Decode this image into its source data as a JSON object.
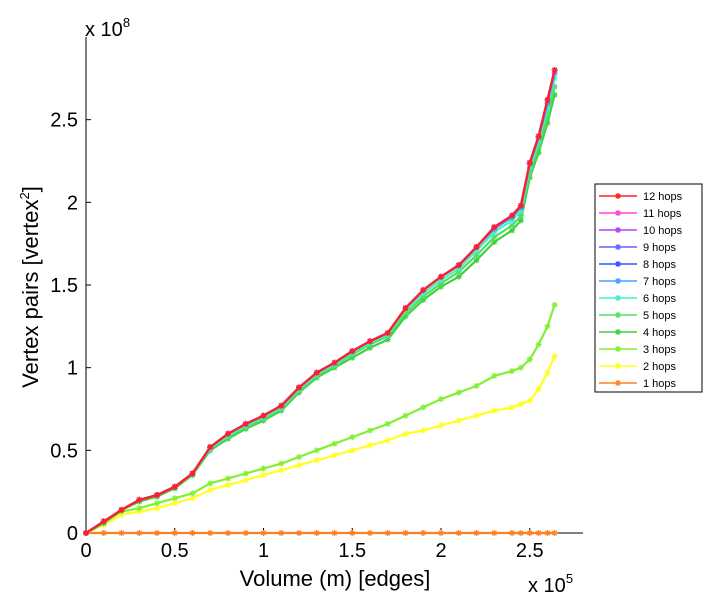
{
  "chart_data": {
    "type": "line",
    "title": "",
    "xlabel": "Volume (m) [edges]",
    "ylabel_main": "Vertex pairs [vertex",
    "ylabel_sup": "2",
    "ylabel_end": "]",
    "x_multiplier": "x 10",
    "x_multiplier_exp": "5",
    "y_multiplier": "x 10",
    "y_multiplier_exp": "8",
    "xlim": [
      0,
      2.8
    ],
    "ylim": [
      0,
      3.0
    ],
    "xticks": [
      0,
      0.5,
      1,
      1.5,
      2,
      2.5
    ],
    "xtick_labels": [
      "0",
      "0.5",
      "1",
      "1.5",
      "2",
      "2.5"
    ],
    "yticks": [
      0,
      0.5,
      1,
      1.5,
      2,
      2.5
    ],
    "ytick_labels": [
      "0",
      "0.5",
      "1",
      "1.5",
      "2",
      "2.5"
    ],
    "legend_position": "right",
    "grid": false,
    "x": [
      0,
      0.1,
      0.2,
      0.3,
      0.4,
      0.5,
      0.6,
      0.7,
      0.8,
      0.9,
      1.0,
      1.1,
      1.2,
      1.3,
      1.4,
      1.5,
      1.6,
      1.7,
      1.8,
      1.9,
      2.0,
      2.1,
      2.2,
      2.3,
      2.4,
      2.45,
      2.5,
      2.55,
      2.6,
      2.64
    ],
    "series": [
      {
        "name": "12 hops",
        "color": "#ff2020",
        "values": [
          0,
          0.07,
          0.14,
          0.2,
          0.23,
          0.28,
          0.36,
          0.52,
          0.6,
          0.66,
          0.71,
          0.77,
          0.88,
          0.97,
          1.03,
          1.1,
          1.16,
          1.21,
          1.36,
          1.47,
          1.55,
          1.62,
          1.73,
          1.85,
          1.92,
          1.98,
          2.24,
          2.4,
          2.62,
          2.8
        ]
      },
      {
        "name": "11 hops",
        "color": "#ff40e0",
        "values": [
          0,
          0.07,
          0.14,
          0.2,
          0.23,
          0.28,
          0.36,
          0.52,
          0.6,
          0.66,
          0.71,
          0.77,
          0.88,
          0.97,
          1.03,
          1.1,
          1.16,
          1.21,
          1.36,
          1.47,
          1.55,
          1.62,
          1.73,
          1.85,
          1.92,
          1.98,
          2.24,
          2.4,
          2.62,
          2.8
        ]
      },
      {
        "name": "10 hops",
        "color": "#b040ff",
        "values": [
          0,
          0.07,
          0.14,
          0.2,
          0.23,
          0.28,
          0.36,
          0.52,
          0.6,
          0.66,
          0.71,
          0.77,
          0.88,
          0.97,
          1.03,
          1.1,
          1.16,
          1.21,
          1.36,
          1.47,
          1.55,
          1.62,
          1.73,
          1.85,
          1.92,
          1.98,
          2.24,
          2.4,
          2.62,
          2.8
        ]
      },
      {
        "name": "9 hops",
        "color": "#6060ff",
        "values": [
          0,
          0.07,
          0.14,
          0.2,
          0.23,
          0.28,
          0.36,
          0.52,
          0.6,
          0.66,
          0.71,
          0.77,
          0.88,
          0.97,
          1.03,
          1.1,
          1.16,
          1.21,
          1.36,
          1.47,
          1.55,
          1.62,
          1.73,
          1.85,
          1.92,
          1.98,
          2.24,
          2.4,
          2.62,
          2.8
        ]
      },
      {
        "name": "8 hops",
        "color": "#3050ff",
        "values": [
          0,
          0.07,
          0.14,
          0.2,
          0.23,
          0.28,
          0.36,
          0.52,
          0.6,
          0.66,
          0.71,
          0.77,
          0.88,
          0.97,
          1.03,
          1.1,
          1.16,
          1.21,
          1.36,
          1.47,
          1.55,
          1.62,
          1.73,
          1.85,
          1.92,
          1.98,
          2.24,
          2.4,
          2.62,
          2.8
        ]
      },
      {
        "name": "7 hops",
        "color": "#40a0ff",
        "values": [
          0,
          0.07,
          0.14,
          0.2,
          0.23,
          0.28,
          0.36,
          0.52,
          0.6,
          0.66,
          0.71,
          0.77,
          0.88,
          0.97,
          1.03,
          1.1,
          1.16,
          1.21,
          1.36,
          1.47,
          1.55,
          1.62,
          1.73,
          1.84,
          1.91,
          1.97,
          2.23,
          2.39,
          2.6,
          2.78
        ]
      },
      {
        "name": "6 hops",
        "color": "#40f0d0",
        "values": [
          0,
          0.07,
          0.14,
          0.2,
          0.23,
          0.28,
          0.36,
          0.51,
          0.59,
          0.65,
          0.7,
          0.76,
          0.87,
          0.96,
          1.02,
          1.09,
          1.15,
          1.2,
          1.35,
          1.45,
          1.53,
          1.6,
          1.71,
          1.82,
          1.89,
          1.95,
          2.21,
          2.37,
          2.57,
          2.75
        ]
      },
      {
        "name": "5 hops",
        "color": "#50e060",
        "values": [
          0,
          0.07,
          0.14,
          0.2,
          0.23,
          0.28,
          0.35,
          0.51,
          0.58,
          0.64,
          0.69,
          0.75,
          0.86,
          0.95,
          1.01,
          1.08,
          1.14,
          1.19,
          1.33,
          1.43,
          1.51,
          1.58,
          1.68,
          1.79,
          1.86,
          1.92,
          2.18,
          2.34,
          2.52,
          2.7
        ]
      },
      {
        "name": "4 hops",
        "color": "#40d040",
        "values": [
          0,
          0.06,
          0.14,
          0.19,
          0.22,
          0.27,
          0.35,
          0.5,
          0.57,
          0.63,
          0.68,
          0.74,
          0.85,
          0.94,
          1.0,
          1.06,
          1.12,
          1.17,
          1.31,
          1.41,
          1.49,
          1.55,
          1.65,
          1.76,
          1.83,
          1.89,
          2.15,
          2.3,
          2.48,
          2.65
        ]
      },
      {
        "name": "3 hops",
        "color": "#80f030",
        "values": [
          0,
          0.06,
          0.13,
          0.15,
          0.18,
          0.21,
          0.24,
          0.3,
          0.33,
          0.36,
          0.39,
          0.42,
          0.46,
          0.5,
          0.54,
          0.58,
          0.62,
          0.66,
          0.71,
          0.76,
          0.81,
          0.85,
          0.89,
          0.95,
          0.98,
          1.0,
          1.05,
          1.14,
          1.25,
          1.38
        ]
      },
      {
        "name": "2 hops",
        "color": "#ffff20",
        "values": [
          0,
          0.05,
          0.11,
          0.13,
          0.15,
          0.18,
          0.21,
          0.26,
          0.29,
          0.32,
          0.35,
          0.38,
          0.41,
          0.44,
          0.47,
          0.5,
          0.53,
          0.56,
          0.6,
          0.62,
          0.65,
          0.68,
          0.71,
          0.74,
          0.76,
          0.78,
          0.8,
          0.87,
          0.97,
          1.07
        ]
      },
      {
        "name": "1 hops",
        "color": "#ff8020",
        "values": [
          0,
          0,
          0,
          0,
          0,
          0,
          0,
          0,
          0,
          0,
          0,
          0,
          0,
          0,
          0,
          0,
          0,
          0,
          0,
          0,
          0,
          0,
          0,
          0,
          0,
          0,
          0,
          0,
          0,
          0
        ]
      }
    ]
  }
}
